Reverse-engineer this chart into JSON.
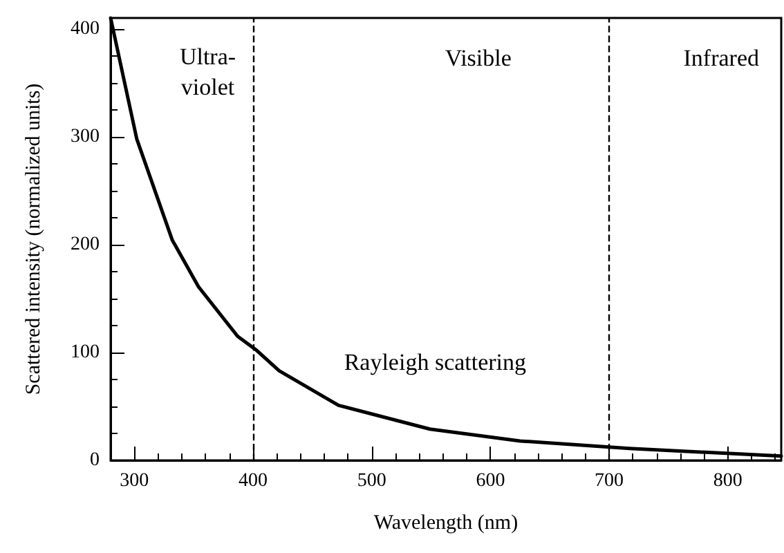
{
  "chart_data": {
    "type": "line",
    "xlabel": "Wavelength (nm)",
    "ylabel": "Scattered intensity (normalized units)",
    "x": [
      280,
      302,
      332,
      354,
      387,
      403,
      422,
      472,
      549,
      625,
      717,
      845
    ],
    "series": [
      {
        "color": "#000000",
        "values": [
          410,
          298,
          204,
          161,
          115,
          102,
          83,
          51,
          29,
          18,
          11,
          4
        ]
      }
    ],
    "xlim": [
      280,
      845
    ],
    "xticks": [
      300,
      400,
      500,
      600,
      700,
      800
    ],
    "ylim": [
      0,
      410
    ],
    "yticks": [
      0,
      100,
      200,
      300,
      400
    ],
    "grid": false,
    "marker": "none",
    "line_style": "solid",
    "ref_lines": [
      {
        "axis": "x",
        "value": 400,
        "line_style": "dashed",
        "color": "#000000"
      },
      {
        "axis": "x",
        "value": 700,
        "line_style": "dashed",
        "color": "#000000"
      }
    ],
    "annotations": [
      "Ultra-\nviolet",
      "Visible",
      "Infrared",
      "Rayleigh scattering"
    ]
  }
}
